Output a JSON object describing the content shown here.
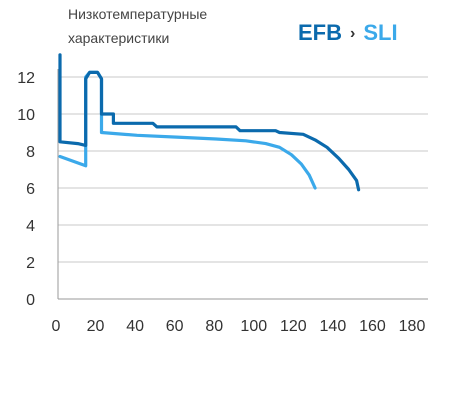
{
  "title_lines": [
    "Низкотемпературные",
    "характеристики"
  ],
  "brand": {
    "efb": "EFB",
    "separator": "›",
    "sli": "SLI"
  },
  "colors": {
    "efb": "#0b6aad",
    "sli": "#3ba9ea",
    "grid": "#c8c8c8",
    "axis": "#9a9a9a"
  },
  "chart_data": {
    "type": "line",
    "title": "Низкотемпературные характеристики",
    "xlim": [
      0,
      180
    ],
    "ylim": [
      0,
      12
    ],
    "xticks": [
      0,
      20,
      40,
      60,
      80,
      100,
      120,
      140,
      160,
      180
    ],
    "yticks": [
      0,
      2,
      4,
      6,
      8,
      10,
      12
    ],
    "grid": "horizontal",
    "series": [
      {
        "name": "EFB",
        "color": "#0b6aad",
        "points": [
          [
            1,
            13.2
          ],
          [
            1,
            8.5
          ],
          [
            10,
            8.4
          ],
          [
            14,
            8.3
          ],
          [
            14,
            11.9
          ],
          [
            16,
            12.25
          ],
          [
            20,
            12.25
          ],
          [
            22,
            11.9
          ],
          [
            22,
            10.0
          ],
          [
            28,
            10.0
          ],
          [
            28,
            9.5
          ],
          [
            48,
            9.5
          ],
          [
            50,
            9.3
          ],
          [
            90,
            9.3
          ],
          [
            92,
            9.1
          ],
          [
            110,
            9.1
          ],
          [
            112,
            9.0
          ],
          [
            124,
            8.9
          ],
          [
            130,
            8.6
          ],
          [
            136,
            8.2
          ],
          [
            142,
            7.6
          ],
          [
            147,
            7.0
          ],
          [
            151,
            6.4
          ],
          [
            152,
            5.9
          ]
        ]
      },
      {
        "name": "SLI",
        "color": "#3ba9ea",
        "points": [
          [
            1,
            7.7
          ],
          [
            14,
            7.2
          ],
          [
            14,
            12.0
          ],
          [
            16,
            12.25
          ],
          [
            20,
            12.25
          ],
          [
            22,
            11.9
          ],
          [
            22,
            9.0
          ],
          [
            40,
            8.85
          ],
          [
            60,
            8.75
          ],
          [
            80,
            8.65
          ],
          [
            95,
            8.55
          ],
          [
            105,
            8.4
          ],
          [
            112,
            8.2
          ],
          [
            118,
            7.8
          ],
          [
            123,
            7.3
          ],
          [
            127,
            6.7
          ],
          [
            130,
            6.0
          ]
        ]
      }
    ]
  }
}
